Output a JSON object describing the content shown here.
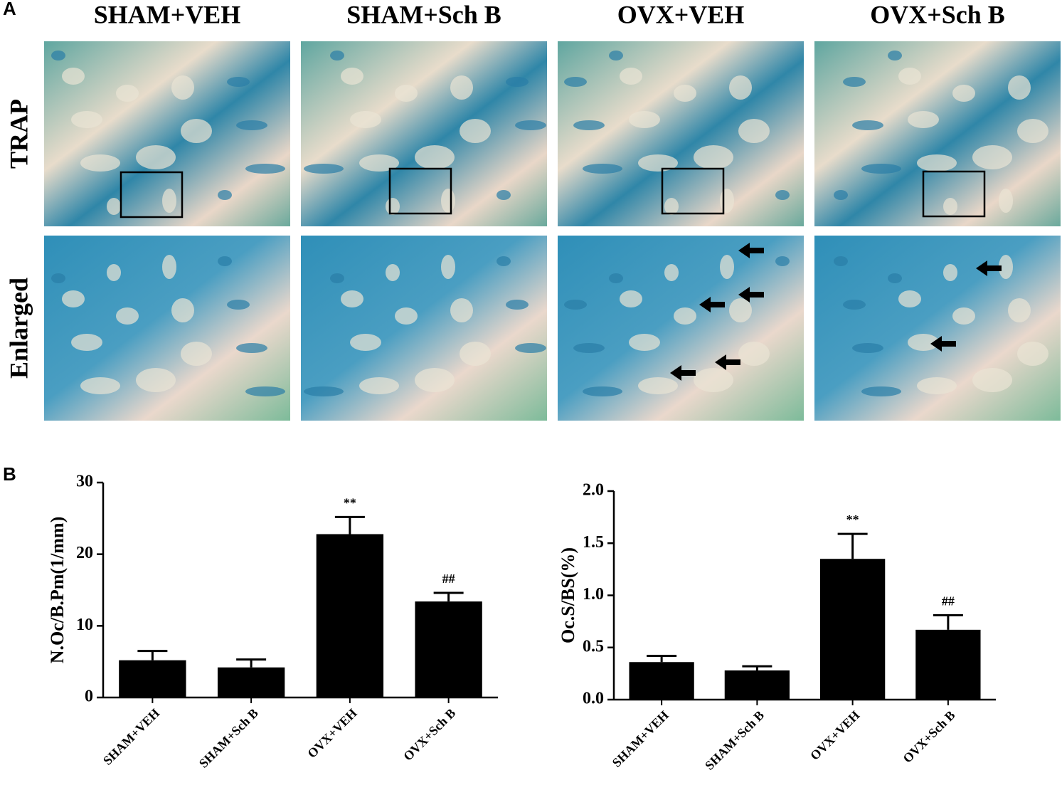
{
  "panels": [
    "A",
    "B"
  ],
  "columns": [
    "SHAM+VEH",
    "SHAM+Sch B",
    "OVX+VEH",
    "OVX+Sch B"
  ],
  "rows": [
    "TRAP",
    "Enlarged"
  ],
  "chart_data": [
    {
      "type": "bar",
      "ylabel": "N.Oc/B.Pm(1/mm)",
      "categories": [
        "SHAM+VEH",
        "SHAM+Sch B",
        "OVX+VEH",
        "OVX+Sch B"
      ],
      "values": [
        5.2,
        4.2,
        22.8,
        13.4
      ],
      "errors": [
        1.3,
        1.1,
        2.4,
        1.2
      ],
      "annotations": [
        null,
        null,
        "**",
        "##"
      ],
      "color": "#000000",
      "ylim": [
        0,
        30
      ],
      "yticks": [
        0,
        10,
        20,
        30
      ]
    },
    {
      "type": "bar",
      "ylabel": "Oc.S/BS(%)",
      "categories": [
        "SHAM+VEH",
        "SHAM+Sch B",
        "OVX+VEH",
        "OVX+Sch B"
      ],
      "values": [
        0.36,
        0.28,
        1.35,
        0.67
      ],
      "errors": [
        0.06,
        0.04,
        0.24,
        0.14
      ],
      "annotations": [
        null,
        null,
        "**",
        "##"
      ],
      "color": "#000000",
      "ylim": [
        0,
        2.0
      ],
      "yticks": [
        {
          "value": 0,
          "label": "0.0"
        },
        0.5,
        {
          "value": 1,
          "label": "1.0"
        },
        1.5,
        {
          "value": 2,
          "label": "2.0"
        }
      ]
    }
  ]
}
